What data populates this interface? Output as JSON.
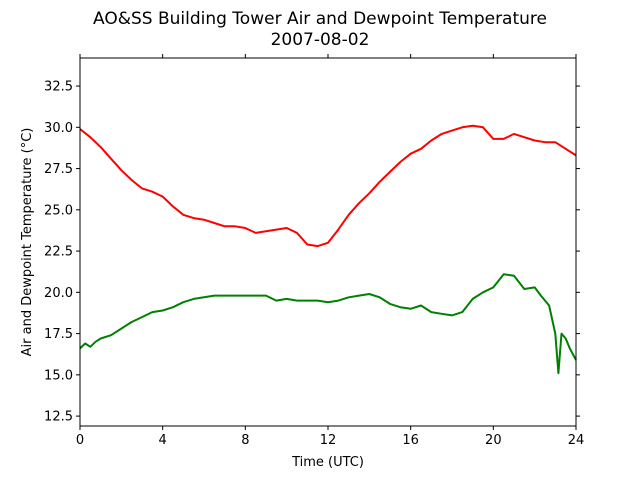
{
  "chart_data": {
    "type": "line",
    "title": "AO&SS Building Tower Air and Dewpoint Temperature",
    "subtitle": "2007-08-02",
    "xlabel": "Time (UTC)",
    "ylabel": "Air and Dewpoint Temperature (°C)",
    "xlim": [
      0,
      24
    ],
    "ylim": [
      11.9,
      34.2
    ],
    "xticks": [
      0,
      4,
      8,
      12,
      16,
      20,
      24
    ],
    "yticks": [
      12.5,
      15.0,
      17.5,
      20.0,
      22.5,
      25.0,
      27.5,
      30.0,
      32.5
    ],
    "grid": false,
    "legend": "none",
    "series": [
      {
        "color": "#ff0000",
        "x": [
          0,
          0.5,
          1,
          1.5,
          2,
          2.5,
          3,
          3.5,
          4,
          4.5,
          5,
          5.5,
          6,
          6.5,
          7,
          7.5,
          8,
          8.5,
          9,
          9.5,
          10,
          10.5,
          11,
          11.5,
          12,
          12.5,
          13,
          13.5,
          14,
          14.5,
          15,
          15.5,
          16,
          16.5,
          17,
          17.5,
          18,
          18.5,
          19,
          19.5,
          20,
          20.5,
          21,
          21.5,
          22,
          22.5,
          23,
          23.5,
          24
        ],
        "values": [
          29.9,
          29.4,
          28.8,
          28.1,
          27.4,
          26.8,
          26.3,
          26.1,
          25.8,
          25.2,
          24.7,
          24.5,
          24.4,
          24.2,
          24.0,
          24.0,
          23.9,
          23.6,
          23.7,
          23.8,
          23.9,
          23.6,
          22.9,
          22.8,
          23.0,
          23.8,
          24.7,
          25.4,
          26.0,
          26.7,
          27.3,
          27.9,
          28.4,
          28.7,
          29.2,
          29.6,
          29.8,
          30.0,
          30.1,
          30.0,
          29.3,
          29.3,
          29.6,
          29.4,
          29.2,
          29.1,
          29.1,
          28.7,
          28.3
        ]
      },
      {
        "color": "#008000",
        "x": [
          0,
          0.25,
          0.5,
          0.75,
          1,
          1.5,
          2,
          2.5,
          3,
          3.5,
          4,
          4.5,
          5,
          5.5,
          6,
          6.5,
          7,
          7.5,
          8,
          8.5,
          9,
          9.5,
          10,
          10.5,
          11,
          11.5,
          12,
          12.5,
          13,
          13.5,
          14,
          14.5,
          15,
          15.5,
          16,
          16.5,
          17,
          17.5,
          18,
          18.5,
          19,
          19.5,
          20,
          20.5,
          21,
          21.5,
          22,
          22.3,
          22.7,
          23,
          23.15,
          23.3,
          23.5,
          23.7,
          24
        ],
        "values": [
          16.6,
          16.9,
          16.7,
          17.0,
          17.2,
          17.4,
          17.8,
          18.2,
          18.5,
          18.8,
          18.9,
          19.1,
          19.4,
          19.6,
          19.7,
          19.8,
          19.8,
          19.8,
          19.8,
          19.8,
          19.8,
          19.5,
          19.6,
          19.5,
          19.5,
          19.5,
          19.4,
          19.5,
          19.7,
          19.8,
          19.9,
          19.7,
          19.3,
          19.1,
          19.0,
          19.2,
          18.8,
          18.7,
          18.6,
          18.8,
          19.6,
          20.0,
          20.3,
          21.1,
          21.0,
          20.2,
          20.3,
          19.8,
          19.2,
          17.5,
          15.1,
          17.5,
          17.2,
          16.6,
          15.9
        ]
      }
    ]
  }
}
